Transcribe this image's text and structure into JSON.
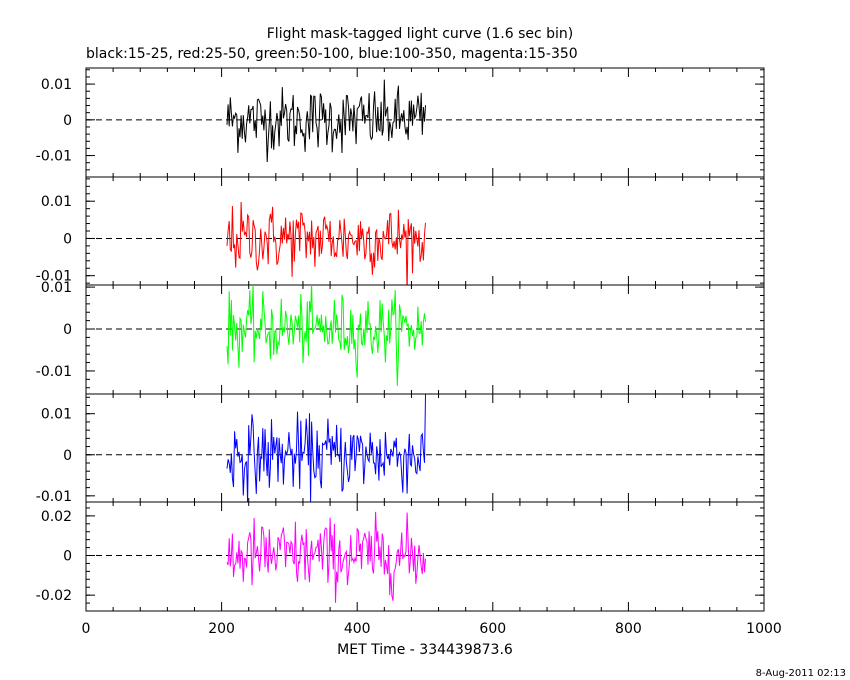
{
  "chart_data": {
    "type": "line",
    "title": "Flight mask-tagged light curve (1.6 sec bin)",
    "subtitle": "black:15-25, red:25-50, green:50-100, blue:100-350, magenta:15-350",
    "xlabel": "MET Time - 334439873.6",
    "xlim": [
      0,
      1000
    ],
    "x_ticks": [
      "0",
      "200",
      "400",
      "600",
      "800",
      "1000"
    ],
    "x_ticks_values": [
      0,
      200,
      400,
      600,
      800,
      1000
    ],
    "data_range": [
      208,
      501
    ],
    "bin_seconds": 1.6,
    "zero_line": "dashed",
    "panels": [
      {
        "name": "black:15-25",
        "color": "#000000",
        "ylim": [
          -0.016,
          0.0145
        ],
        "ytick_values": [
          0.01,
          0,
          -0.01
        ],
        "yticks": [
          "0.01",
          "0",
          "-0.01"
        ],
        "amplitude": 0.0045
      },
      {
        "name": "red:25-50",
        "color": "#ff0000",
        "ylim": [
          -0.0125,
          0.0165
        ],
        "ytick_values": [
          0.01,
          0,
          -0.01
        ],
        "yticks": [
          "0.01",
          "0",
          "-0.01"
        ],
        "amplitude": 0.0045
      },
      {
        "name": "green:50-100",
        "color": "#00ff00",
        "ylim": [
          -0.0155,
          0.0105
        ],
        "ytick_values": [
          0.01,
          0,
          -0.01
        ],
        "yticks": [
          "0.01",
          "0",
          "-0.01"
        ],
        "amplitude": 0.004
      },
      {
        "name": "blue:100-350",
        "color": "#0000ff",
        "ylim": [
          -0.0115,
          0.0148
        ],
        "ytick_values": [
          0.01,
          0,
          -0.01
        ],
        "yticks": [
          "0.01",
          "0",
          "-0.01"
        ],
        "amplitude": 0.0045
      },
      {
        "name": "magenta:15-350",
        "color": "#ff00ff",
        "ylim": [
          -0.028,
          0.027
        ],
        "ytick_values": [
          0.02,
          0,
          -0.02
        ],
        "yticks": [
          "0.02",
          "0",
          "-0.02"
        ],
        "amplitude": 0.009
      }
    ]
  },
  "footer": {
    "timestamp": "8-Aug-2011 02:13"
  }
}
